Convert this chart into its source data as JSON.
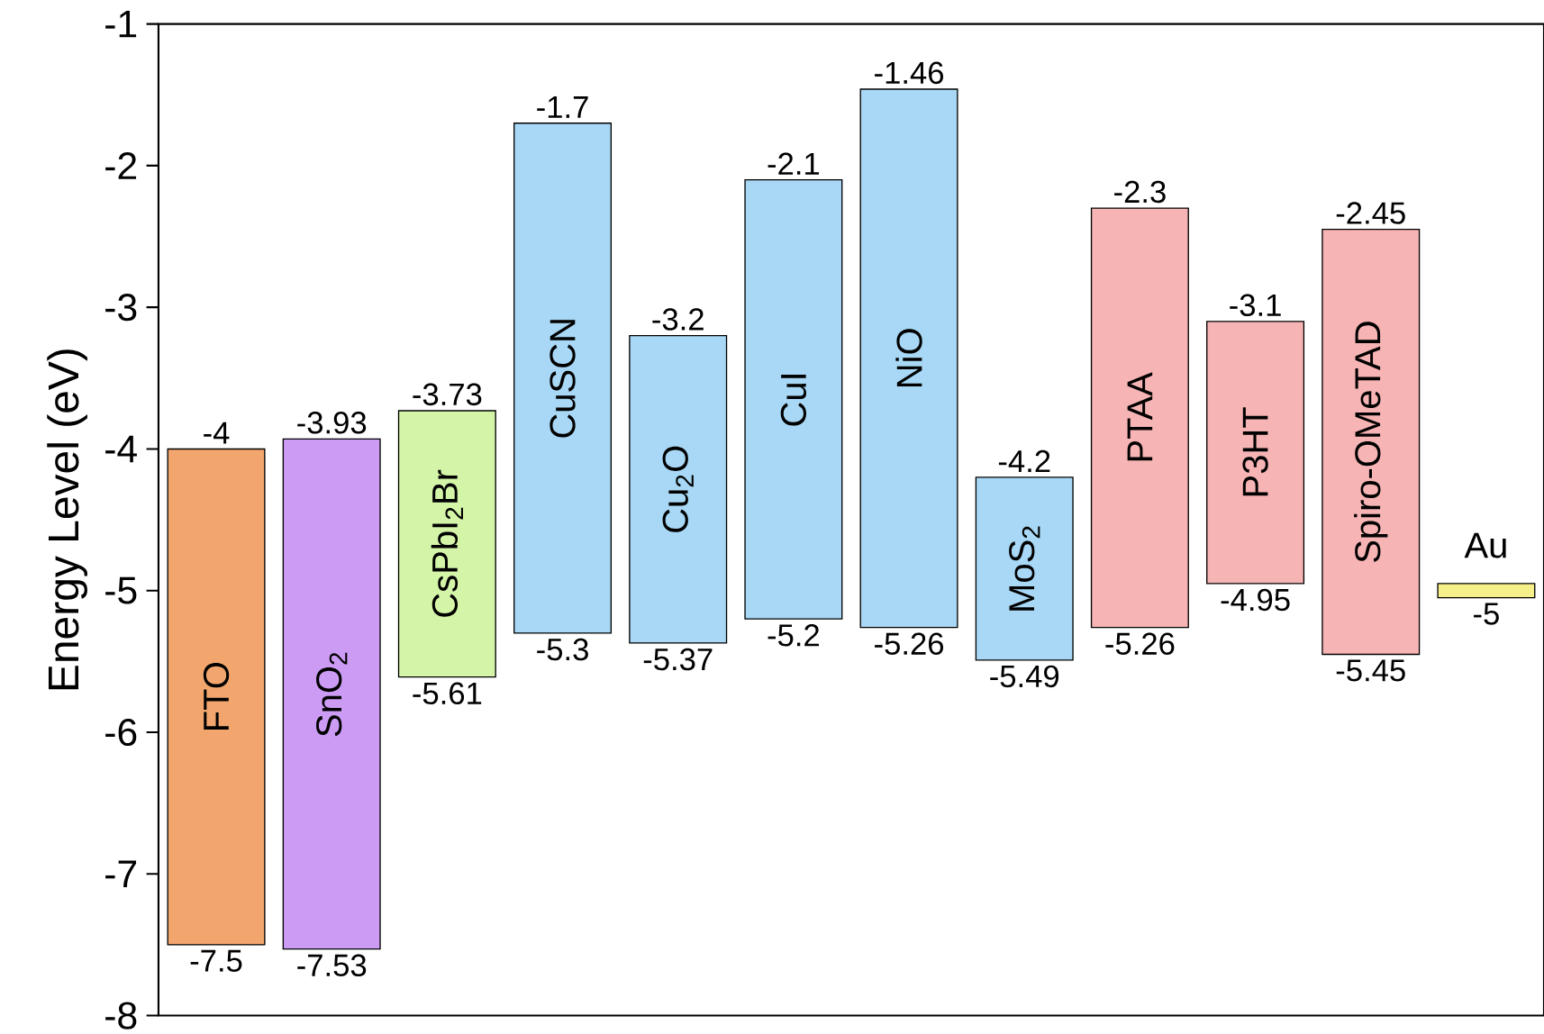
{
  "chart_data": {
    "type": "bar",
    "ylabel": "Energy Level (eV)",
    "categories": [
      "FTO",
      "SnO$_{2}$",
      "CsPbI$_{2}$Br",
      "CuSCN",
      "Cu$_{2}$O",
      "CuI",
      "NiO",
      "MoS$_{2}$",
      "PTAA",
      "P3HT",
      "Spiro-OMeTAD",
      "Au"
    ],
    "base": [
      -7.5,
      -7.53,
      -5.61,
      -5.3,
      -5.37,
      -5.2,
      -5.26,
      -5.49,
      -5.26,
      -4.95,
      -5.45,
      -5.05
    ],
    "values": [
      3.5,
      3.6,
      1.88,
      3.6,
      2.17,
      3.1,
      3.8,
      1.29,
      2.96,
      1.85,
      3.0,
      0.1
    ],
    "colors": [
      "#f2a66e",
      "#cc9cf5",
      "#d4f5a8",
      "#a8d8f5",
      "#a8d8f5",
      "#a8d8f5",
      "#a8d8f5",
      "#a8d8f5",
      "#f7b4b4",
      "#f7b4b4",
      "#f7b4b4",
      "#f7f08a"
    ],
    "ylim": [
      -8,
      -1
    ],
    "yticks": [
      -8,
      -7,
      -6,
      -5,
      -4,
      -3,
      -2,
      -1
    ],
    "tick_labels": "y",
    "annotations": [
      {
        "text": "-4",
        "x": "FTO",
        "y": -4
      },
      {
        "text": "-7.5",
        "x": "FTO",
        "y": -7.5
      },
      {
        "text": "-3.93",
        "x": "SnO$_{2}$",
        "y": -3.93
      },
      {
        "text": "-7.53",
        "x": "SnO$_{2}$",
        "y": -7.53
      },
      {
        "text": "-3.73",
        "x": "CsPbI$_{2}$Br",
        "y": -3.73
      },
      {
        "text": "-5.61",
        "x": "CsPbI$_{2}$Br",
        "y": -5.61
      },
      {
        "text": "-1.7",
        "x": "CuSCN",
        "y": -1.7
      },
      {
        "text": "-5.3",
        "x": "CuSCN",
        "y": -5.3
      },
      {
        "text": "-3.2",
        "x": "Cu$_{2}$O",
        "y": -3.2
      },
      {
        "text": "-5.37",
        "x": "Cu$_{2}$O",
        "y": -5.37
      },
      {
        "text": "-2.1",
        "x": "CuI",
        "y": -2.1
      },
      {
        "text": "-5.2",
        "x": "CuI",
        "y": -5.2
      },
      {
        "text": "-1.46",
        "x": "NiO",
        "y": -1.46
      },
      {
        "text": "-5.26",
        "x": "NiO",
        "y": -5.26
      },
      {
        "text": "-4.2",
        "x": "MoS$_{2}$",
        "y": -4.2
      },
      {
        "text": "-5.49",
        "x": "MoS$_{2}$",
        "y": -5.49
      },
      {
        "text": "-2.3",
        "x": "PTAA",
        "y": -2.3
      },
      {
        "text": "-5.26",
        "x": "PTAA",
        "y": -5.26
      },
      {
        "text": "-3.1",
        "x": "P3HT",
        "y": -3.1
      },
      {
        "text": "-4.95",
        "x": "P3HT",
        "y": -4.95
      },
      {
        "text": "-2.45",
        "x": "Spiro-OMeTAD",
        "y": -2.45
      },
      {
        "text": "-5.45",
        "x": "Spiro-OMeTAD",
        "y": -5.45
      },
      {
        "text": "-5",
        "x": "Au",
        "y": -5
      }
    ]
  }
}
